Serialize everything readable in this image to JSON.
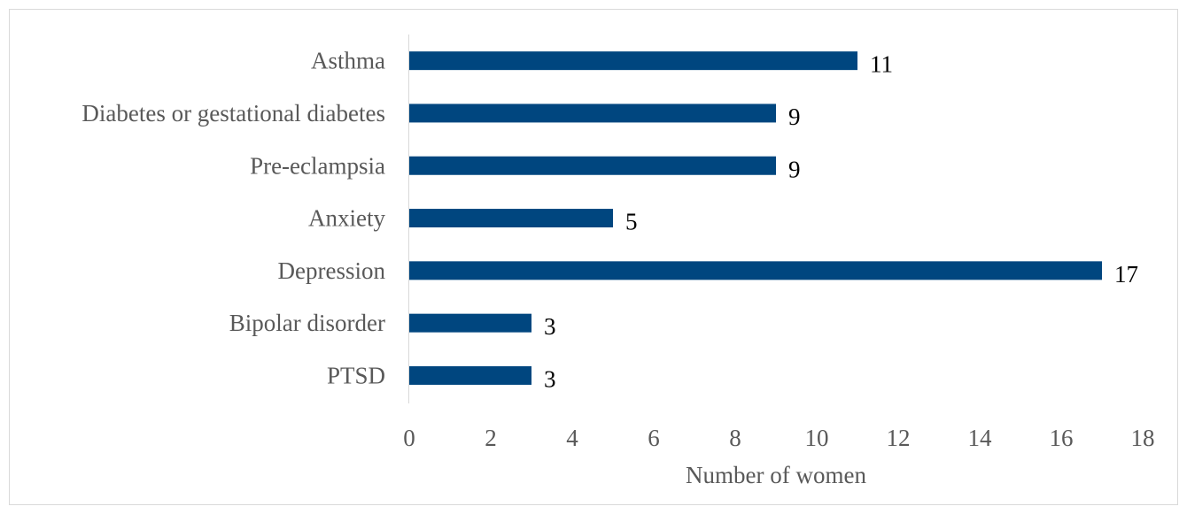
{
  "chart_data": {
    "type": "bar",
    "orientation": "horizontal",
    "categories": [
      "Asthma",
      "Diabetes or gestational diabetes",
      "Pre-eclampsia",
      "Anxiety",
      "Depression",
      "Bipolar disorder",
      "PTSD"
    ],
    "values": [
      11,
      9,
      9,
      5,
      17,
      3,
      3
    ],
    "title": "",
    "xlabel": "Number of women",
    "ylabel": "",
    "xlim": [
      0,
      18
    ],
    "xticks": [
      "0",
      "2",
      "4",
      "6",
      "8",
      "10",
      "12",
      "14",
      "16",
      "18"
    ],
    "data_labels": [
      "11",
      "9",
      "9",
      "5",
      "17",
      "3",
      "3"
    ],
    "grid": false,
    "legend": "none",
    "colors": {
      "bar": "#00467f"
    }
  }
}
